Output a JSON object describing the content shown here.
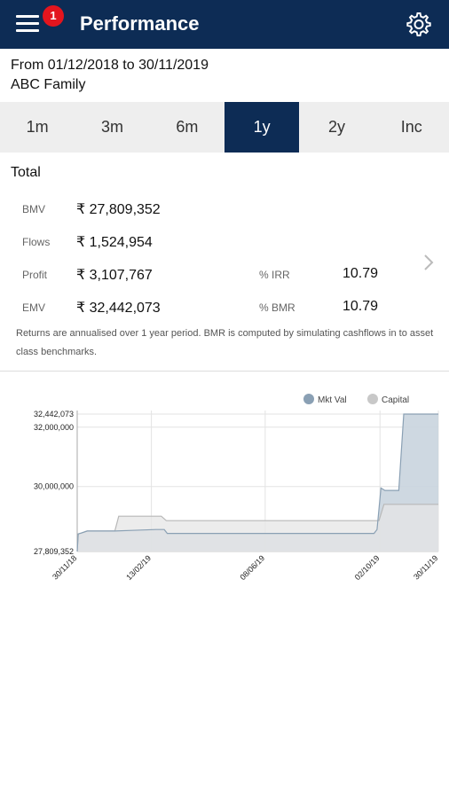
{
  "header": {
    "title": "Performance",
    "badge_count": "1",
    "menu_icon": "hamburger-icon",
    "settings_icon": "gear-icon"
  },
  "period": "From 01/12/2018 to 30/11/2019",
  "account": "ABC Family",
  "tabs": [
    {
      "label": "1m",
      "active": false
    },
    {
      "label": "3m",
      "active": false
    },
    {
      "label": "6m",
      "active": false
    },
    {
      "label": "1y",
      "active": true
    },
    {
      "label": "2y",
      "active": false
    },
    {
      "label": "Inc",
      "active": false
    }
  ],
  "summary": {
    "title": "Total",
    "bmv_label": "BMV",
    "bmv_value": "₹ 27,809,352",
    "flows_label": "Flows",
    "flows_value": "₹ 1,524,954",
    "profit_label": "Profit",
    "profit_value": "₹ 3,107,767",
    "emv_label": "EMV",
    "emv_value": "₹ 32,442,073",
    "irr_label": "% IRR",
    "irr_value": "10.79",
    "bmr_label": "% BMR",
    "bmr_value": "10.79",
    "note": "Returns are annualised over 1 year period. BMR is computed by simulating cashflows in to asset class benchmarks."
  },
  "colors": {
    "header_bg": "#0d2c55",
    "badge": "#e3151e",
    "mkt_val": "#8aa0b4",
    "capital": "#c8c8c8"
  },
  "chart_data": {
    "type": "area",
    "legend_position": "top-right",
    "ylim": [
      27809352,
      32442073
    ],
    "y_ticks": [
      "32,442,073",
      "32,000,000",
      "30,000,000",
      "27,809,352"
    ],
    "y_tick_values": [
      32442073,
      32000000,
      30000000,
      27809352
    ],
    "x_ticks": [
      "30/11/18",
      "13/02/19",
      "08/06/19",
      "02/10/19",
      "30/11/19"
    ],
    "x_tick_days": [
      0,
      75,
      190,
      306,
      365
    ],
    "series": [
      {
        "name": "Mkt Val",
        "color": "#8aa0b4",
        "points": [
          [
            0,
            27809352
          ],
          [
            1,
            28400000
          ],
          [
            4,
            28430000
          ],
          [
            10,
            28500000
          ],
          [
            38,
            28500000
          ],
          [
            55,
            28520000
          ],
          [
            80,
            28550000
          ],
          [
            88,
            28550000
          ],
          [
            91,
            28420000
          ],
          [
            300,
            28420000
          ],
          [
            303,
            28550000
          ],
          [
            307,
            29950000
          ],
          [
            311,
            29870000
          ],
          [
            325,
            29870000
          ],
          [
            330,
            32442073
          ],
          [
            365,
            32442073
          ]
        ]
      },
      {
        "name": "Capital",
        "color": "#c8c8c8",
        "points": [
          [
            0,
            27809352
          ],
          [
            1,
            28400000
          ],
          [
            4,
            28430000
          ],
          [
            10,
            28500000
          ],
          [
            38,
            28500000
          ],
          [
            42,
            29000000
          ],
          [
            85,
            29000000
          ],
          [
            90,
            28850000
          ],
          [
            305,
            28850000
          ],
          [
            310,
            29400000
          ],
          [
            365,
            29400000
          ]
        ]
      }
    ]
  }
}
